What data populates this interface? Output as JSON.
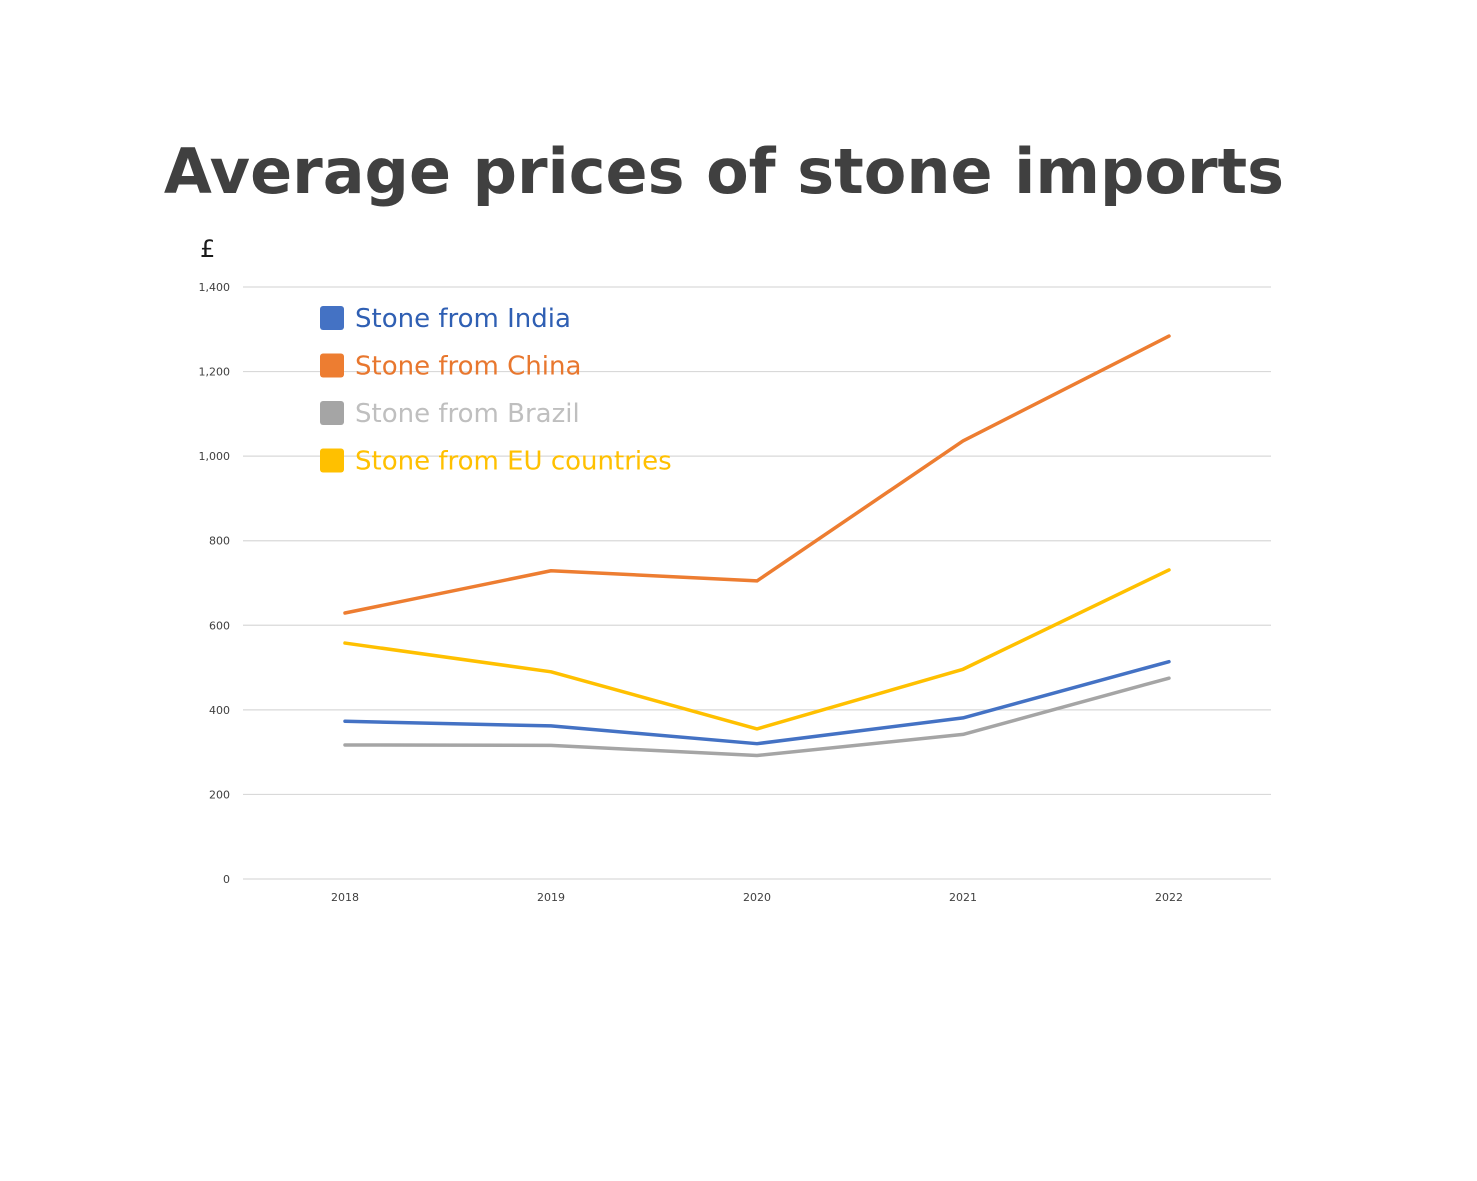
{
  "chart_data": {
    "type": "line",
    "title": "Average prices of stone imports",
    "ylabel": "£",
    "xlabel": "",
    "categories": [
      "2018",
      "2019",
      "2020",
      "2021",
      "2022"
    ],
    "ylim": [
      0,
      1400
    ],
    "yticks": [
      0,
      200,
      400,
      600,
      800,
      1000,
      1200,
      1400
    ],
    "ytick_labels": [
      "0",
      "200",
      "400",
      "600",
      "800",
      "1,000",
      "1,200",
      "1,400"
    ],
    "grid": true,
    "legend_position": "top-left",
    "series": [
      {
        "name": "Stone from India",
        "color": "#4472c4",
        "label_color": "#2f5fb3",
        "values": [
          373,
          362,
          320,
          381,
          514
        ]
      },
      {
        "name": "Stone from China",
        "color": "#ed7d31",
        "label_color": "#e8772e",
        "values": [
          629,
          729,
          705,
          1036,
          1284
        ]
      },
      {
        "name": "Stone from Brazil",
        "color": "#a5a5a5",
        "label_color": "#bfbfbf",
        "values": [
          317,
          316,
          292,
          342,
          475
        ]
      },
      {
        "name": "Stone from EU countries",
        "color": "#ffc000",
        "label_color": "#ffc000",
        "values": [
          558,
          490,
          355,
          496,
          731
        ]
      }
    ]
  }
}
